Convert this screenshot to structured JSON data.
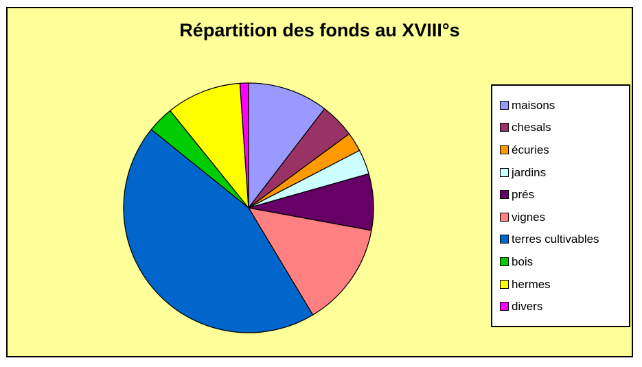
{
  "page": {
    "background_color": "#FFFFFF",
    "frame_background_color": "#FFFF99",
    "frame_border_color": "#000000",
    "legend_background_color": "#FFFFFF",
    "legend_border_color": "#000000"
  },
  "chart_data": {
    "type": "pie",
    "title": "Répartition des fonds au XVIII°s",
    "legend_position": "right",
    "direction": "clockwise",
    "start_angle_deg": 0,
    "values_unit": "percent_of_total_estimated_from_slice_angles",
    "slice_border_color": "#000000",
    "series": [
      {
        "name": "maisons",
        "value": 10.4,
        "color": "#9999FF"
      },
      {
        "name": "chesals",
        "value": 4.5,
        "color": "#993366"
      },
      {
        "name": "écuries",
        "value": 2.5,
        "color": "#FF9900"
      },
      {
        "name": "jardins",
        "value": 3.2,
        "color": "#CCFFFF"
      },
      {
        "name": "prés",
        "value": 7.3,
        "color": "#660066"
      },
      {
        "name": "vignes",
        "value": 13.5,
        "color": "#FF8080"
      },
      {
        "name": "terres cultivables",
        "value": 44.4,
        "color": "#0066CC"
      },
      {
        "name": "bois",
        "value": 3.4,
        "color": "#00CC00"
      },
      {
        "name": "hermes",
        "value": 9.7,
        "color": "#FFFF00"
      },
      {
        "name": "divers",
        "value": 1.1,
        "color": "#FF00FF"
      }
    ]
  }
}
